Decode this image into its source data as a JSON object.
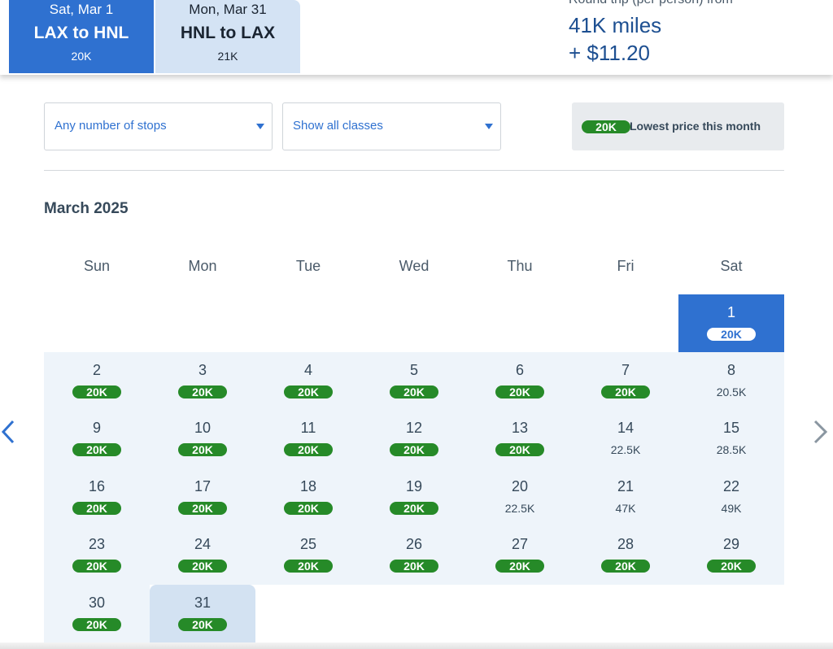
{
  "header": {
    "outbound": {
      "date": "Sat, Mar 1",
      "route": "LAX to HNL",
      "price": "20K"
    },
    "return": {
      "date": "Mon, Mar 31",
      "route": "HNL to LAX",
      "price": "21K"
    },
    "roundtrip_label": "Round trip (per person) from",
    "roundtrip_miles": "41K miles",
    "roundtrip_fees": "+ $11.20"
  },
  "filters": {
    "stops": "Any number of stops",
    "classes": "Show all classes"
  },
  "legend": {
    "pill": "20K",
    "label": "Lowest price this month"
  },
  "calendar": {
    "month": "March 2025",
    "weekdays": [
      "Sun",
      "Mon",
      "Tue",
      "Wed",
      "Thu",
      "Fri",
      "Sat"
    ],
    "days": [
      {
        "num": "1",
        "price": "20K",
        "lowest": true,
        "state": "selected"
      },
      {
        "num": "2",
        "price": "20K",
        "lowest": true
      },
      {
        "num": "3",
        "price": "20K",
        "lowest": true
      },
      {
        "num": "4",
        "price": "20K",
        "lowest": true
      },
      {
        "num": "5",
        "price": "20K",
        "lowest": true
      },
      {
        "num": "6",
        "price": "20K",
        "lowest": true
      },
      {
        "num": "7",
        "price": "20K",
        "lowest": true
      },
      {
        "num": "8",
        "price": "20.5K",
        "lowest": false
      },
      {
        "num": "9",
        "price": "20K",
        "lowest": true
      },
      {
        "num": "10",
        "price": "20K",
        "lowest": true
      },
      {
        "num": "11",
        "price": "20K",
        "lowest": true
      },
      {
        "num": "12",
        "price": "20K",
        "lowest": true
      },
      {
        "num": "13",
        "price": "20K",
        "lowest": true
      },
      {
        "num": "14",
        "price": "22.5K",
        "lowest": false
      },
      {
        "num": "15",
        "price": "28.5K",
        "lowest": false
      },
      {
        "num": "16",
        "price": "20K",
        "lowest": true
      },
      {
        "num": "17",
        "price": "20K",
        "lowest": true
      },
      {
        "num": "18",
        "price": "20K",
        "lowest": true
      },
      {
        "num": "19",
        "price": "20K",
        "lowest": true
      },
      {
        "num": "20",
        "price": "22.5K",
        "lowest": false
      },
      {
        "num": "21",
        "price": "47K",
        "lowest": false
      },
      {
        "num": "22",
        "price": "49K",
        "lowest": false
      },
      {
        "num": "23",
        "price": "20K",
        "lowest": true
      },
      {
        "num": "24",
        "price": "20K",
        "lowest": true
      },
      {
        "num": "25",
        "price": "20K",
        "lowest": true
      },
      {
        "num": "26",
        "price": "20K",
        "lowest": true
      },
      {
        "num": "27",
        "price": "20K",
        "lowest": true
      },
      {
        "num": "28",
        "price": "20K",
        "lowest": true
      },
      {
        "num": "29",
        "price": "20K",
        "lowest": true
      },
      {
        "num": "30",
        "price": "20K",
        "lowest": true
      },
      {
        "num": "31",
        "price": "20K",
        "lowest": true,
        "state": "return"
      }
    ]
  },
  "nav": {
    "prev_icon": "chevron-left-icon",
    "next_icon": "chevron-right-icon"
  },
  "colors": {
    "primary": "#2f71d0",
    "return_tab": "#d4e3f4",
    "lowest_pill": "#268a28",
    "calendar_bg": "#eef4fa",
    "heading": "#1d4f91"
  }
}
